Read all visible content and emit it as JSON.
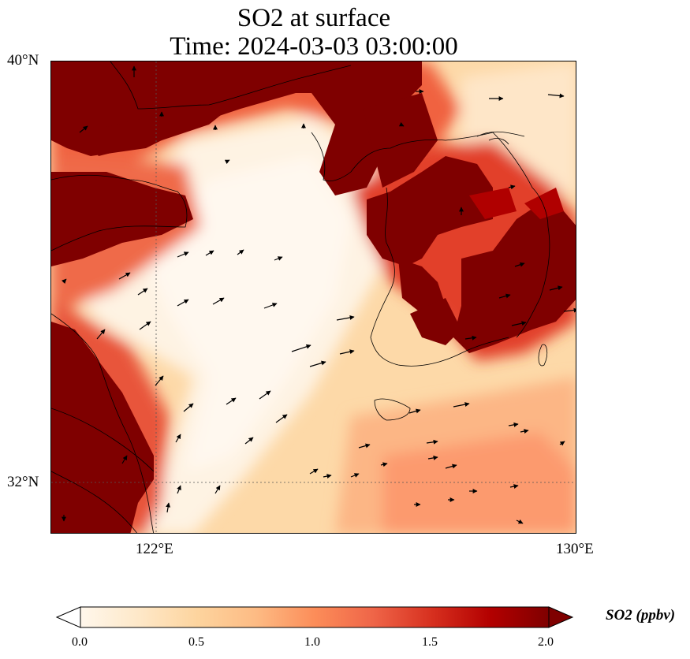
{
  "title": {
    "line1": "SO2 at surface",
    "line2": "Time: 2024-03-03 03:00:00"
  },
  "map": {
    "lat_labels": [
      "40°N",
      "32°N"
    ],
    "lon_labels": [
      "122°E",
      "130°E"
    ],
    "lat_range": [
      31,
      40
    ],
    "lon_range": [
      120,
      130
    ],
    "gridlines": {
      "lat": [
        32
      ],
      "lon": [
        122
      ],
      "style": "dotted"
    },
    "field": "SO2 concentration with wind vectors",
    "high_regions": [
      "NE China coast / Liaoning",
      "Shandong peninsula",
      "Jiangsu coast (west)",
      "Korean Peninsula (north & south)"
    ],
    "low_regions": [
      "Yellow Sea center",
      "East China Sea"
    ]
  },
  "colorbar": {
    "label": "SO2 (ppbv)",
    "ticks": [
      "0.0",
      "0.5",
      "1.0",
      "1.5",
      "2.0"
    ],
    "min": 0.0,
    "max": 2.0,
    "colormap": "OrRd",
    "extend": "both",
    "colors": [
      "#fff7ec",
      "#fee8c8",
      "#fdd49e",
      "#fdbb84",
      "#fc8d59",
      "#ef6548",
      "#d7301f",
      "#b30000",
      "#7f0000"
    ]
  }
}
